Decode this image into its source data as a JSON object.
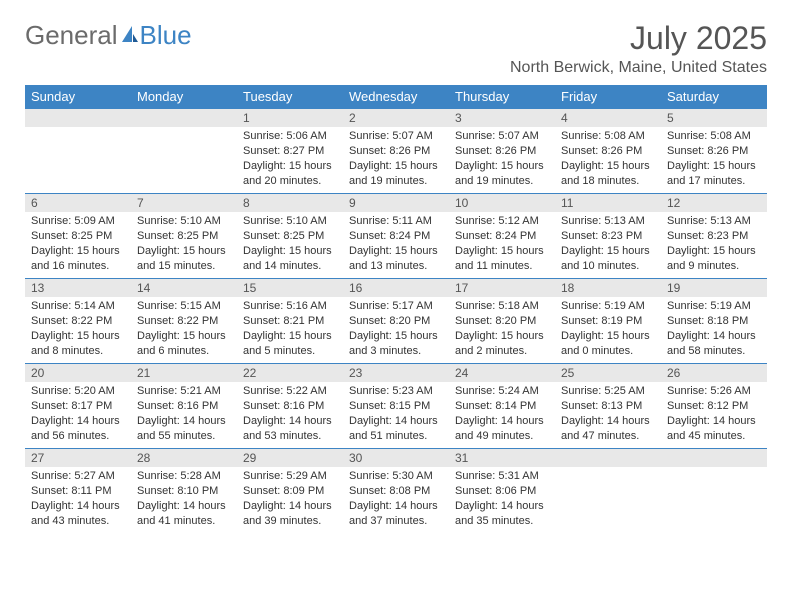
{
  "logo": {
    "text1": "General",
    "text2": "Blue"
  },
  "title": "July 2025",
  "location": "North Berwick, Maine, United States",
  "colors": {
    "header_bg": "#3d84c4",
    "header_text": "#ffffff",
    "daynum_bg": "#e8e8e8",
    "border": "#3d84c4",
    "logo_gray": "#6b6b6b",
    "logo_blue": "#3d84c4",
    "text": "#333333"
  },
  "weekdays": [
    "Sunday",
    "Monday",
    "Tuesday",
    "Wednesday",
    "Thursday",
    "Friday",
    "Saturday"
  ],
  "weeks": [
    [
      {
        "day": "",
        "sunrise": "",
        "sunset": "",
        "daylight": ""
      },
      {
        "day": "",
        "sunrise": "",
        "sunset": "",
        "daylight": ""
      },
      {
        "day": "1",
        "sunrise": "Sunrise: 5:06 AM",
        "sunset": "Sunset: 8:27 PM",
        "daylight": "Daylight: 15 hours and 20 minutes."
      },
      {
        "day": "2",
        "sunrise": "Sunrise: 5:07 AM",
        "sunset": "Sunset: 8:26 PM",
        "daylight": "Daylight: 15 hours and 19 minutes."
      },
      {
        "day": "3",
        "sunrise": "Sunrise: 5:07 AM",
        "sunset": "Sunset: 8:26 PM",
        "daylight": "Daylight: 15 hours and 19 minutes."
      },
      {
        "day": "4",
        "sunrise": "Sunrise: 5:08 AM",
        "sunset": "Sunset: 8:26 PM",
        "daylight": "Daylight: 15 hours and 18 minutes."
      },
      {
        "day": "5",
        "sunrise": "Sunrise: 5:08 AM",
        "sunset": "Sunset: 8:26 PM",
        "daylight": "Daylight: 15 hours and 17 minutes."
      }
    ],
    [
      {
        "day": "6",
        "sunrise": "Sunrise: 5:09 AM",
        "sunset": "Sunset: 8:25 PM",
        "daylight": "Daylight: 15 hours and 16 minutes."
      },
      {
        "day": "7",
        "sunrise": "Sunrise: 5:10 AM",
        "sunset": "Sunset: 8:25 PM",
        "daylight": "Daylight: 15 hours and 15 minutes."
      },
      {
        "day": "8",
        "sunrise": "Sunrise: 5:10 AM",
        "sunset": "Sunset: 8:25 PM",
        "daylight": "Daylight: 15 hours and 14 minutes."
      },
      {
        "day": "9",
        "sunrise": "Sunrise: 5:11 AM",
        "sunset": "Sunset: 8:24 PM",
        "daylight": "Daylight: 15 hours and 13 minutes."
      },
      {
        "day": "10",
        "sunrise": "Sunrise: 5:12 AM",
        "sunset": "Sunset: 8:24 PM",
        "daylight": "Daylight: 15 hours and 11 minutes."
      },
      {
        "day": "11",
        "sunrise": "Sunrise: 5:13 AM",
        "sunset": "Sunset: 8:23 PM",
        "daylight": "Daylight: 15 hours and 10 minutes."
      },
      {
        "day": "12",
        "sunrise": "Sunrise: 5:13 AM",
        "sunset": "Sunset: 8:23 PM",
        "daylight": "Daylight: 15 hours and 9 minutes."
      }
    ],
    [
      {
        "day": "13",
        "sunrise": "Sunrise: 5:14 AM",
        "sunset": "Sunset: 8:22 PM",
        "daylight": "Daylight: 15 hours and 8 minutes."
      },
      {
        "day": "14",
        "sunrise": "Sunrise: 5:15 AM",
        "sunset": "Sunset: 8:22 PM",
        "daylight": "Daylight: 15 hours and 6 minutes."
      },
      {
        "day": "15",
        "sunrise": "Sunrise: 5:16 AM",
        "sunset": "Sunset: 8:21 PM",
        "daylight": "Daylight: 15 hours and 5 minutes."
      },
      {
        "day": "16",
        "sunrise": "Sunrise: 5:17 AM",
        "sunset": "Sunset: 8:20 PM",
        "daylight": "Daylight: 15 hours and 3 minutes."
      },
      {
        "day": "17",
        "sunrise": "Sunrise: 5:18 AM",
        "sunset": "Sunset: 8:20 PM",
        "daylight": "Daylight: 15 hours and 2 minutes."
      },
      {
        "day": "18",
        "sunrise": "Sunrise: 5:19 AM",
        "sunset": "Sunset: 8:19 PM",
        "daylight": "Daylight: 15 hours and 0 minutes."
      },
      {
        "day": "19",
        "sunrise": "Sunrise: 5:19 AM",
        "sunset": "Sunset: 8:18 PM",
        "daylight": "Daylight: 14 hours and 58 minutes."
      }
    ],
    [
      {
        "day": "20",
        "sunrise": "Sunrise: 5:20 AM",
        "sunset": "Sunset: 8:17 PM",
        "daylight": "Daylight: 14 hours and 56 minutes."
      },
      {
        "day": "21",
        "sunrise": "Sunrise: 5:21 AM",
        "sunset": "Sunset: 8:16 PM",
        "daylight": "Daylight: 14 hours and 55 minutes."
      },
      {
        "day": "22",
        "sunrise": "Sunrise: 5:22 AM",
        "sunset": "Sunset: 8:16 PM",
        "daylight": "Daylight: 14 hours and 53 minutes."
      },
      {
        "day": "23",
        "sunrise": "Sunrise: 5:23 AM",
        "sunset": "Sunset: 8:15 PM",
        "daylight": "Daylight: 14 hours and 51 minutes."
      },
      {
        "day": "24",
        "sunrise": "Sunrise: 5:24 AM",
        "sunset": "Sunset: 8:14 PM",
        "daylight": "Daylight: 14 hours and 49 minutes."
      },
      {
        "day": "25",
        "sunrise": "Sunrise: 5:25 AM",
        "sunset": "Sunset: 8:13 PM",
        "daylight": "Daylight: 14 hours and 47 minutes."
      },
      {
        "day": "26",
        "sunrise": "Sunrise: 5:26 AM",
        "sunset": "Sunset: 8:12 PM",
        "daylight": "Daylight: 14 hours and 45 minutes."
      }
    ],
    [
      {
        "day": "27",
        "sunrise": "Sunrise: 5:27 AM",
        "sunset": "Sunset: 8:11 PM",
        "daylight": "Daylight: 14 hours and 43 minutes."
      },
      {
        "day": "28",
        "sunrise": "Sunrise: 5:28 AM",
        "sunset": "Sunset: 8:10 PM",
        "daylight": "Daylight: 14 hours and 41 minutes."
      },
      {
        "day": "29",
        "sunrise": "Sunrise: 5:29 AM",
        "sunset": "Sunset: 8:09 PM",
        "daylight": "Daylight: 14 hours and 39 minutes."
      },
      {
        "day": "30",
        "sunrise": "Sunrise: 5:30 AM",
        "sunset": "Sunset: 8:08 PM",
        "daylight": "Daylight: 14 hours and 37 minutes."
      },
      {
        "day": "31",
        "sunrise": "Sunrise: 5:31 AM",
        "sunset": "Sunset: 8:06 PM",
        "daylight": "Daylight: 14 hours and 35 minutes."
      },
      {
        "day": "",
        "sunrise": "",
        "sunset": "",
        "daylight": ""
      },
      {
        "day": "",
        "sunrise": "",
        "sunset": "",
        "daylight": ""
      }
    ]
  ]
}
